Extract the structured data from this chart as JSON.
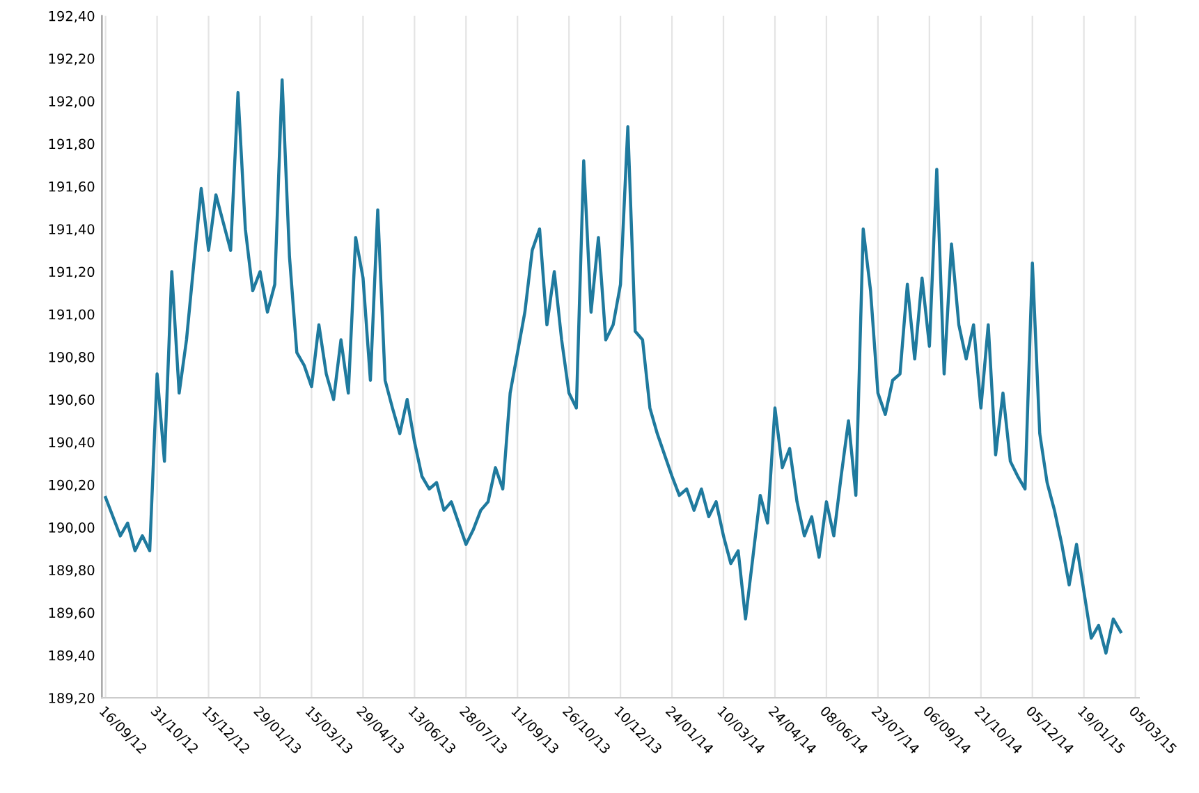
{
  "chart_data": {
    "type": "line",
    "categories": [
      "16/09/12",
      null,
      null,
      null,
      null,
      null,
      null,
      "31/10/12",
      null,
      null,
      null,
      null,
      null,
      null,
      "15/12/12",
      null,
      null,
      null,
      null,
      null,
      null,
      "29/01/13",
      null,
      null,
      null,
      null,
      null,
      null,
      "15/03/13",
      null,
      null,
      null,
      null,
      null,
      null,
      "29/04/13",
      null,
      null,
      null,
      null,
      null,
      null,
      "13/06/13",
      null,
      null,
      null,
      null,
      null,
      null,
      "28/07/13",
      null,
      null,
      null,
      null,
      null,
      null,
      "11/09/13",
      null,
      null,
      null,
      null,
      null,
      null,
      "26/10/13",
      null,
      null,
      null,
      null,
      null,
      null,
      "10/12/13",
      null,
      null,
      null,
      null,
      null,
      null,
      "24/01/14",
      null,
      null,
      null,
      null,
      null,
      null,
      "10/03/14",
      null,
      null,
      null,
      null,
      null,
      null,
      "24/04/14",
      null,
      null,
      null,
      null,
      null,
      null,
      "08/06/14",
      null,
      null,
      null,
      null,
      null,
      null,
      "23/07/14",
      null,
      null,
      null,
      null,
      null,
      null,
      "06/09/14",
      null,
      null,
      null,
      null,
      null,
      null,
      "21/10/14",
      null,
      null,
      null,
      null,
      null,
      null,
      "05/12/14",
      null,
      null,
      null,
      null,
      null,
      null,
      "19/01/15",
      null,
      null,
      null,
      null,
      null,
      null,
      "05/03/15"
    ],
    "series": [
      {
        "color": "#1f7a9e",
        "values": [
          190.14,
          190.05,
          189.96,
          190.02,
          189.89,
          189.96,
          189.89,
          190.72,
          190.31,
          191.2,
          190.63,
          190.88,
          191.24,
          191.59,
          191.3,
          191.56,
          191.43,
          191.3,
          192.04,
          191.4,
          191.11,
          191.2,
          191.01,
          191.14,
          192.1,
          191.27,
          190.82,
          190.76,
          190.66,
          190.95,
          190.72,
          190.6,
          190.88,
          190.63,
          191.36,
          191.17,
          190.69,
          191.49,
          190.69,
          190.56,
          190.44,
          190.6,
          190.4,
          190.24,
          190.18,
          190.21,
          190.08,
          190.12,
          190.02,
          189.92,
          189.99,
          190.08,
          190.12,
          190.28,
          190.18,
          190.63,
          190.82,
          191.01,
          191.3,
          191.4,
          190.95,
          191.2,
          190.88,
          190.63,
          190.56,
          191.72,
          191.01,
          191.36,
          190.88,
          190.95,
          191.14,
          191.88,
          190.92,
          190.88,
          190.56,
          190.44,
          190.34,
          190.24,
          190.15,
          190.18,
          190.08,
          190.18,
          190.05,
          190.12,
          189.96,
          189.83,
          189.89,
          189.57,
          189.86,
          190.15,
          190.02,
          190.56,
          190.28,
          190.37,
          190.12,
          189.96,
          190.05,
          189.86,
          190.12,
          189.96,
          190.24,
          190.5,
          190.15,
          191.4,
          191.11,
          190.63,
          190.53,
          190.69,
          190.72,
          191.14,
          190.79,
          191.17,
          190.85,
          191.68,
          190.72,
          191.33,
          190.95,
          190.79,
          190.95,
          190.56,
          190.95,
          190.34,
          190.63,
          190.31,
          190.24,
          190.18,
          191.24,
          190.44,
          190.21,
          190.08,
          189.92,
          189.73,
          189.92,
          189.7,
          189.48,
          189.54,
          189.41,
          189.57,
          189.51,
          null,
          null
        ]
      }
    ],
    "ylim": [
      189.2,
      192.4
    ],
    "yticks": [
      {
        "value": 189.2,
        "label": "189,20"
      },
      {
        "value": 189.4,
        "label": "189,40"
      },
      {
        "value": 189.6,
        "label": "189,60"
      },
      {
        "value": 189.8,
        "label": "189,80"
      },
      {
        "value": 190.0,
        "label": "190,00"
      },
      {
        "value": 190.2,
        "label": "190,20"
      },
      {
        "value": 190.4,
        "label": "190,40"
      },
      {
        "value": 190.6,
        "label": "190,60"
      },
      {
        "value": 190.8,
        "label": "190,80"
      },
      {
        "value": 191.0,
        "label": "191,00"
      },
      {
        "value": 191.2,
        "label": "191,20"
      },
      {
        "value": 191.4,
        "label": "191,40"
      },
      {
        "value": 191.6,
        "label": "191,60"
      },
      {
        "value": 191.8,
        "label": "191,80"
      },
      {
        "value": 192.0,
        "label": "192,00"
      },
      {
        "value": 192.2,
        "label": "192,20"
      },
      {
        "value": 192.4,
        "label": "192,40"
      }
    ],
    "grid": "x",
    "legend": false,
    "marker": "none",
    "line_style": "solid"
  }
}
